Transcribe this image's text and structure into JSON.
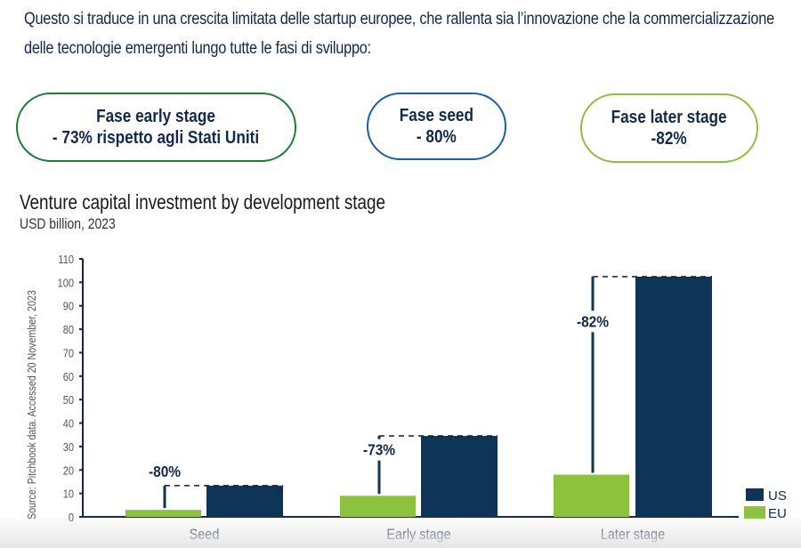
{
  "intro_text": "Questo si traduce in una crescita limitata delle startup europee, che rallenta sia l’innovazione che la commercializzazione delle tecnologie emergenti lungo tutte le fasi di sviluppo:",
  "highlights": [
    {
      "line1": "Fase early stage",
      "line2": "- 73% rispetto agli Stati Uniti",
      "border_color": "#1f7a3a"
    },
    {
      "line1": "Fase seed",
      "line2": "- 80%",
      "border_color": "#1a5ea8"
    },
    {
      "line1": "Fase later stage",
      "line2": "-82%",
      "border_color": "#8dbf3d"
    }
  ],
  "colors": {
    "us": "#0d3558",
    "eu": "#8dc23e",
    "axis": "#0d2a4a",
    "text": "#12294a"
  },
  "chart_data": {
    "type": "bar",
    "title": "Venture capital investment by development stage",
    "subtitle": "USD billion, 2023",
    "source": "Source: Pitchbook data. Accessed 20 November, 2023",
    "xlabel": "",
    "ylabel": "",
    "ylim": [
      0,
      110
    ],
    "yticks": [
      0,
      10,
      20,
      30,
      40,
      50,
      60,
      70,
      80,
      90,
      100,
      110
    ],
    "grid": false,
    "legend_position": "bottom-right",
    "categories": [
      "Seed",
      "Early stage",
      "Later stage"
    ],
    "series": [
      {
        "name": "EU",
        "values": [
          3,
          9,
          18
        ]
      },
      {
        "name": "US",
        "values": [
          13.3,
          34.5,
          102.4
        ]
      }
    ],
    "annotations": [
      "-80%",
      "-73%",
      "-82%"
    ]
  }
}
